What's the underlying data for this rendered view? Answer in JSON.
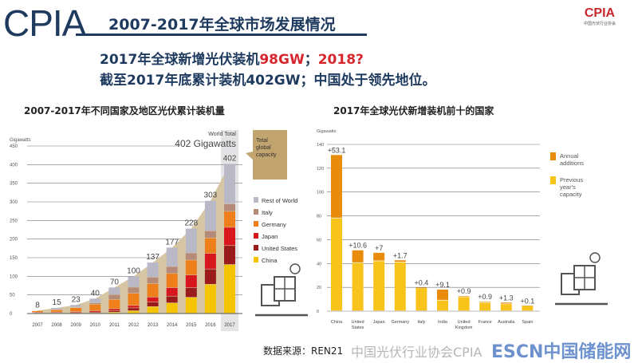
{
  "header": {
    "logo": "CPIA",
    "title": "2007-2017年全球市场发展情况",
    "line1_prefix": "2017年全球新增光伏装机",
    "line1_highlight": "98GW",
    "line1_sep": "；",
    "line1_question": "2018?",
    "line2": "截至2017年底累计装机402GW；中国处于领先地位。",
    "corner_logo": "CPIA",
    "corner_logo_sub": "中国光伏行业协会"
  },
  "watermarks": {
    "wechat": "中国光伏行业协会CPIA",
    "source": "数据来源：REN21",
    "escn": "ESCN中国储能网"
  },
  "colors": {
    "china": "#f5c400",
    "us": "#9a1b1b",
    "japan": "#d7161e",
    "germany": "#ee7f1a",
    "italy": "#b58a78",
    "row": "#b9b8c6",
    "area": "#d7c6a3",
    "annual": "#e98b0c",
    "previous": "#f8c31b"
  },
  "chart_data": [
    {
      "type": "bar",
      "stacked": true,
      "title": "2007-2017年不同国家及地区光伏累计装机量",
      "ylabel": "Gigawatts",
      "ylim": [
        0,
        450
      ],
      "yticks": [
        0,
        50,
        100,
        150,
        200,
        250,
        300,
        350,
        400,
        450
      ],
      "categories": [
        "2007",
        "2008",
        "2009",
        "2010",
        "2011",
        "2012",
        "2013",
        "2014",
        "2015",
        "2016",
        "2017"
      ],
      "totals": [
        8,
        15,
        23,
        40,
        70,
        100,
        137,
        177,
        228,
        303,
        402
      ],
      "series": [
        {
          "name": "China",
          "key": "china",
          "values": [
            0.1,
            0.1,
            0.3,
            0.8,
            3,
            7,
            18,
            28,
            43,
            78,
            131
          ]
        },
        {
          "name": "United States",
          "key": "us",
          "values": [
            0.8,
            1.2,
            1.6,
            2.5,
            4.4,
            7.5,
            12,
            18,
            26,
            41,
            51
          ]
        },
        {
          "name": "Japan",
          "key": "japan",
          "values": [
            1.9,
            2.1,
            2.6,
            3.6,
            4.9,
            6.6,
            13.6,
            23,
            34,
            42,
            49
          ]
        },
        {
          "name": "Germany",
          "key": "germany",
          "values": [
            3.9,
            6,
            10.5,
            17.5,
            25,
            32.6,
            36,
            38,
            40,
            41,
            43
          ]
        },
        {
          "name": "Italy",
          "key": "italy",
          "values": [
            0.1,
            0.5,
            1.2,
            3.5,
            13,
            16.4,
            17.6,
            18.5,
            19,
            19.3,
            19.7
          ]
        },
        {
          "name": "Rest of World",
          "key": "row",
          "values": [
            1.2,
            5.1,
            6.8,
            12.1,
            19.7,
            29.9,
            39.8,
            51.5,
            66,
            81.4,
            108.3
          ]
        }
      ],
      "legend_order": [
        "Rest of World",
        "Italy",
        "Germany",
        "Japan",
        "United States",
        "China"
      ],
      "annotation_top": "World Total",
      "annotation_value": "402 Gigawatts",
      "callout": [
        "Total",
        "global",
        "capacity"
      ]
    },
    {
      "type": "bar",
      "stacked": true,
      "title": "2017年全球光伏新增装机前十的国家",
      "ylabel": "Gigawatts",
      "ylim": [
        0,
        140
      ],
      "yticks": [
        0,
        20,
        40,
        60,
        80,
        100,
        120,
        140
      ],
      "categories": [
        [
          "China"
        ],
        [
          "United",
          "States"
        ],
        [
          "Japan"
        ],
        [
          "Germany"
        ],
        [
          "Italy"
        ],
        [
          "India"
        ],
        [
          "United",
          "Kingdom"
        ],
        [
          "France"
        ],
        [
          "Australia"
        ],
        [
          "Spain"
        ]
      ],
      "series": [
        {
          "name": "Previous year's capacity",
          "key": "previous",
          "values": [
            78,
            40.5,
            42,
            41,
            19.3,
            9,
            11.8,
            7,
            5.9,
            4.4
          ]
        },
        {
          "name": "Annual additions",
          "key": "annual",
          "values": [
            53.1,
            10.6,
            7,
            1.7,
            0.4,
            9.1,
            0.9,
            0.9,
            1.3,
            0.1
          ]
        }
      ],
      "labels": [
        "+53.1",
        "+10.6",
        "+7",
        "+1.7",
        "+0.4",
        "+9.1",
        "+0.9",
        "+0.9",
        "+1.3",
        "+0.1"
      ],
      "legend": [
        [
          "Annual",
          "additions"
        ],
        [
          "Previous",
          "year's",
          "capacity"
        ]
      ]
    }
  ]
}
